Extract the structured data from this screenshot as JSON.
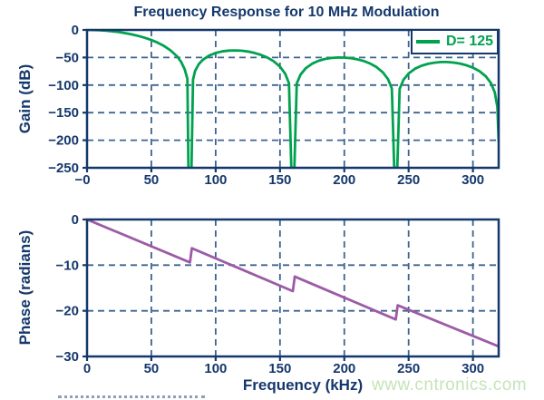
{
  "title": "Frequency Response for 10 MHz Modulation",
  "watermark": "www.cntronics.com",
  "legend": {
    "label": "D= 125"
  },
  "colors": {
    "navy": "#15386c",
    "grid_blue": "#3d6390",
    "green": "#00a24f",
    "purple": "#9c5ba6",
    "watermark_green": "#c6e3b7"
  },
  "chart_data": [
    {
      "id": "gain",
      "type": "line",
      "title": "Frequency Response for 10 MHz Modulation",
      "xlabel": "",
      "ylabel": "Gain (dB)",
      "xlim": [
        0,
        320
      ],
      "ylim": [
        -250,
        0
      ],
      "grid": true,
      "legend_position": "top-right",
      "xticks": [
        0,
        50,
        100,
        150,
        200,
        250,
        300
      ],
      "xtick_labels": [
        "−0",
        "50",
        "100",
        "150",
        "200",
        "250",
        "300"
      ],
      "yticks": [
        0,
        -50,
        -100,
        -150,
        -200,
        -250
      ],
      "ytick_labels": [
        "0",
        "−50",
        "−100",
        "−150",
        "−200",
        "−250"
      ],
      "series": [
        {
          "name": "D= 125",
          "color_key": "green",
          "points": [
            [
              0,
              0
            ],
            [
              5,
              -0.2
            ],
            [
              10,
              -0.6
            ],
            [
              15,
              -1.4
            ],
            [
              20,
              -2.6
            ],
            [
              25,
              -4.0
            ],
            [
              30,
              -5.9
            ],
            [
              35,
              -8.2
            ],
            [
              40,
              -11.0
            ],
            [
              45,
              -14.3
            ],
            [
              50,
              -18.3
            ],
            [
              55,
              -23.2
            ],
            [
              60,
              -29.3
            ],
            [
              65,
              -37.1
            ],
            [
              70,
              -47.9
            ],
            [
              73,
              -57.4
            ],
            [
              76,
              -71.7
            ],
            [
              78,
              -89.0
            ],
            [
              78.8,
              -250
            ],
            [
              81.2,
              -250
            ],
            [
              82.4,
              -90.0
            ],
            [
              84,
              -74.2
            ],
            [
              87,
              -61.6
            ],
            [
              90,
              -54.1
            ],
            [
              95,
              -46.3
            ],
            [
              100,
              -41.7
            ],
            [
              105,
              -38.9
            ],
            [
              110,
              -37.5
            ],
            [
              115,
              -37.1
            ],
            [
              120,
              -37.7
            ],
            [
              125,
              -39.2
            ],
            [
              130,
              -41.6
            ],
            [
              135,
              -45.1
            ],
            [
              140,
              -49.9
            ],
            [
              145,
              -56.6
            ],
            [
              150,
              -66.4
            ],
            [
              154,
              -79.2
            ],
            [
              157,
              -96.3
            ],
            [
              158.8,
              -250
            ],
            [
              161.2,
              -250
            ],
            [
              163,
              -97.2
            ],
            [
              166,
              -81.0
            ],
            [
              170,
              -69.5
            ],
            [
              175,
              -61.2
            ],
            [
              180,
              -56.0
            ],
            [
              185,
              -52.7
            ],
            [
              190,
              -50.8
            ],
            [
              195,
              -50.0
            ],
            [
              200,
              -50.1
            ],
            [
              205,
              -51.2
            ],
            [
              210,
              -53.3
            ],
            [
              215,
              -56.3
            ],
            [
              220,
              -60.9
            ],
            [
              225,
              -67.3
            ],
            [
              230,
              -77.0
            ],
            [
              234,
              -89.3
            ],
            [
              237,
              -106.3
            ],
            [
              238.8,
              -250
            ],
            [
              241.2,
              -250
            ],
            [
              243,
              -106.9
            ],
            [
              246,
              -90.5
            ],
            [
              250,
              -78.9
            ],
            [
              255,
              -70.3
            ],
            [
              260,
              -64.9
            ],
            [
              265,
              -61.5
            ],
            [
              270,
              -59.3
            ],
            [
              275,
              -58.3
            ],
            [
              280,
              -58.3
            ],
            [
              285,
              -59.2
            ],
            [
              290,
              -61.1
            ],
            [
              295,
              -64.1
            ],
            [
              300,
              -68.4
            ],
            [
              305,
              -74.7
            ],
            [
              310,
              -84.1
            ],
            [
              314,
              -96.5
            ],
            [
              317,
              -113.4
            ],
            [
              319,
              -140.0
            ],
            [
              320,
              -203.0
            ]
          ]
        }
      ]
    },
    {
      "id": "phase",
      "type": "line",
      "title": "",
      "xlabel": "Frequency (kHz)",
      "ylabel": "Phase (radians)",
      "xlim": [
        0,
        320
      ],
      "ylim": [
        -30,
        0
      ],
      "grid": true,
      "xticks": [
        0,
        50,
        100,
        150,
        200,
        250,
        300
      ],
      "xtick_labels": [
        "0",
        "50",
        "100",
        "150",
        "200",
        "250",
        "300"
      ],
      "yticks": [
        0,
        -10,
        -20,
        -30
      ],
      "ytick_labels": [
        "0",
        "−10",
        "−20",
        "−30"
      ],
      "series": [
        {
          "name": "phase",
          "color_key": "purple",
          "points": [
            [
              0,
              0
            ],
            [
              80,
              -9.4
            ],
            [
              81.5,
              -6.3
            ],
            [
              160,
              -15.7
            ],
            [
              161.5,
              -12.5
            ],
            [
              240,
              -21.9
            ],
            [
              241.5,
              -18.8
            ],
            [
              320,
              -27.8
            ]
          ]
        }
      ]
    }
  ]
}
